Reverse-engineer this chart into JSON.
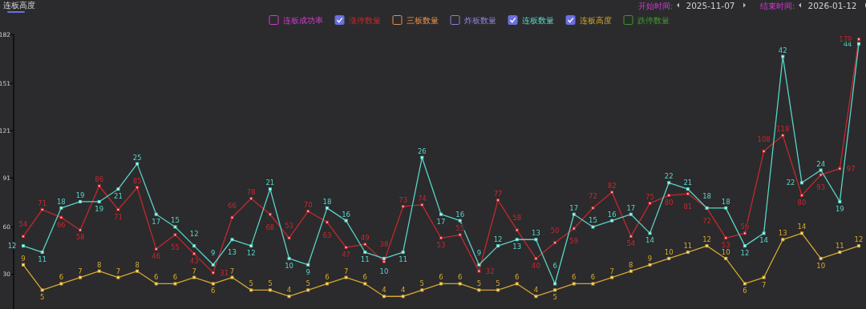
{
  "chart_data": {
    "type": "line",
    "title": "连板高度",
    "annotations": [
      "开始时间:",
      "2025-11-07",
      "结束时间:",
      "2026-01-12"
    ],
    "categories": [
      null,
      null,
      null,
      null,
      null,
      null,
      null,
      null,
      null,
      null,
      null,
      null,
      null,
      null,
      null,
      null,
      null,
      null,
      null,
      null,
      null,
      null,
      null,
      null,
      null,
      null,
      null,
      null,
      null,
      null,
      null,
      null,
      null,
      null,
      null,
      null,
      null,
      null,
      null,
      null,
      null,
      null,
      null,
      null,
      null
    ],
    "ylim": [
      8,
      182
    ],
    "yticks": [
      30,
      60,
      91,
      121,
      151,
      182
    ],
    "y2lim": [
      2,
      45.5
    ],
    "tick_labels": "y",
    "legend": "top",
    "marker": "square",
    "line_style": "solid",
    "data_labels": true,
    "series": [
      {
        "name": "连板成功率",
        "color": "#d13bd1",
        "values": [
          null,
          null,
          null,
          null,
          null,
          null,
          null,
          null,
          null,
          null,
          null,
          null,
          null,
          null,
          null,
          null,
          null,
          null,
          null,
          null,
          null,
          null,
          null,
          null,
          null,
          null,
          null,
          null,
          null,
          null,
          null,
          null,
          null,
          null,
          null,
          null,
          null,
          null,
          null,
          null,
          null,
          null,
          null,
          null,
          null
        ]
      },
      {
        "name": "涨停数量",
        "color": "#c4282e",
        "values": [
          54,
          71,
          66,
          58,
          86,
          71,
          85,
          46,
          55,
          43,
          31,
          66,
          78,
          68,
          53,
          70,
          63,
          47,
          49,
          38,
          73,
          74,
          53,
          55,
          32,
          77,
          58,
          40,
          50,
          59,
          72,
          82,
          54,
          75,
          80,
          81,
          72,
          53,
          56,
          108,
          118,
          80,
          93,
          97,
          179
        ]
      },
      {
        "name": "三板数量",
        "color": "#e8904a",
        "values": [
          null,
          null,
          null,
          null,
          null,
          null,
          null,
          null,
          null,
          null,
          null,
          null,
          null,
          null,
          null,
          null,
          null,
          null,
          null,
          null,
          null,
          null,
          null,
          null,
          null,
          null,
          null,
          null,
          null,
          null,
          null,
          null,
          null,
          null,
          null,
          null,
          null,
          null,
          null,
          null,
          null,
          null,
          null,
          null,
          null
        ]
      },
      {
        "name": "炸板数量",
        "color": "#8f80d8",
        "values": [
          null,
          null,
          null,
          null,
          null,
          null,
          null,
          null,
          null,
          null,
          null,
          null,
          null,
          null,
          null,
          null,
          null,
          null,
          null,
          null,
          null,
          null,
          null,
          null,
          null,
          null,
          null,
          null,
          null,
          null,
          null,
          null,
          null,
          null,
          null,
          null,
          null,
          null,
          null,
          null,
          null,
          null,
          null,
          null,
          null
        ]
      },
      {
        "name": "连板数量",
        "color": "#5ad4c6",
        "axis": "y2",
        "values": [
          12,
          11,
          18,
          19,
          19,
          21,
          25,
          17,
          15,
          12,
          9,
          13,
          12,
          21,
          10,
          9,
          18,
          16,
          11,
          10,
          11,
          26,
          17,
          16,
          9,
          12,
          13,
          13,
          6,
          17,
          15,
          16,
          17,
          14,
          22,
          21,
          18,
          18,
          12,
          14,
          42,
          22,
          24,
          19,
          44
        ]
      },
      {
        "name": "连板高度",
        "color": "#d6a82e",
        "axis": "y2",
        "values": [
          9,
          5,
          6,
          7,
          8,
          7,
          8,
          6,
          6,
          7,
          6,
          7,
          5,
          5,
          4,
          5,
          6,
          7,
          6,
          4,
          4,
          5,
          6,
          6,
          5,
          5,
          6,
          4,
          5,
          6,
          6,
          7,
          8,
          9,
          10,
          11,
          12,
          10,
          6,
          7,
          13,
          14,
          10,
          11,
          12
        ]
      },
      {
        "name": "跌停数量",
        "color": "#3a9a2a",
        "values": [
          null,
          null,
          null,
          null,
          null,
          null,
          null,
          null,
          null,
          null,
          null,
          null,
          null,
          null,
          null,
          null,
          null,
          null,
          null,
          null,
          null,
          null,
          null,
          null,
          null,
          null,
          null,
          null,
          null,
          null,
          null,
          null,
          null,
          null,
          null,
          null,
          null,
          null,
          null,
          null,
          null,
          null,
          null,
          null,
          null
        ]
      }
    ]
  }
}
